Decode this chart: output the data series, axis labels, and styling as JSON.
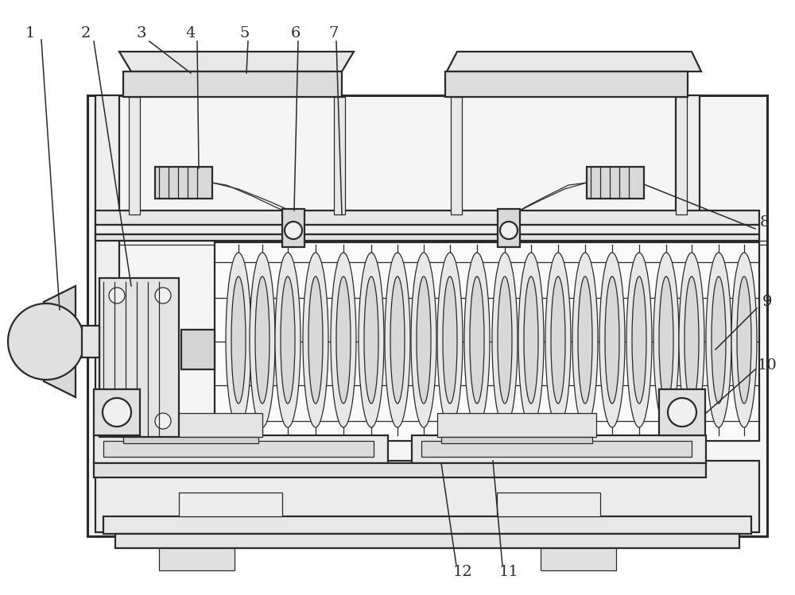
{
  "bg_color": "#ffffff",
  "lc": "#2a2a2a",
  "fc_light": "#f0f0f0",
  "fc_mid": "#e0e0e0",
  "fc_dark": "#cccccc",
  "fc_white": "#fafafa",
  "figsize": [
    10.0,
    7.49
  ],
  "dpi": 100,
  "label_fs": 14,
  "lw_main": 1.6,
  "lw_thick": 2.2,
  "lw_thin": 0.9
}
